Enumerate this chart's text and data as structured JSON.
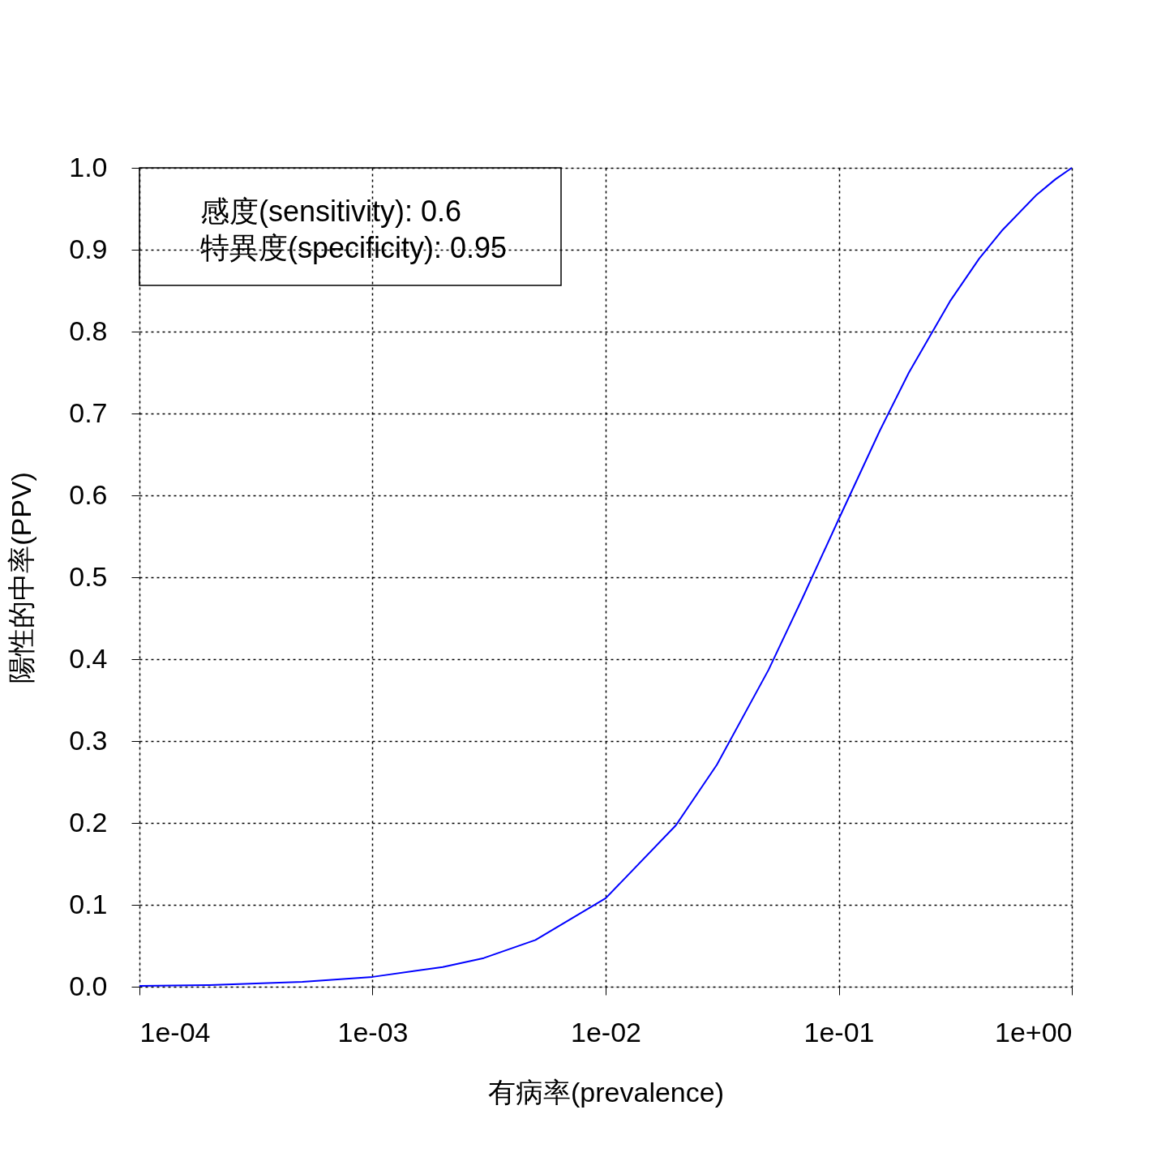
{
  "chart_data": {
    "type": "line",
    "xlabel": "有病率(prevalence)",
    "ylabel": "陽性的中率(PPV)",
    "annotations": [
      "感度(sensitivity): 0.6",
      "特異度(specificity): 0.95"
    ],
    "x": [
      0.0001,
      0.0002,
      0.0005,
      0.001,
      0.002,
      0.003,
      0.005,
      0.01,
      0.02,
      0.03,
      0.05,
      0.07,
      0.1,
      0.15,
      0.2,
      0.3,
      0.4,
      0.5,
      0.7,
      0.85,
      1
    ],
    "series": [
      {
        "color": "#0000ff",
        "values": [
          0.001,
          0.002,
          0.006,
          0.012,
          0.024,
          0.035,
          0.057,
          0.108,
          0.197,
          0.271,
          0.387,
          0.475,
          0.571,
          0.679,
          0.75,
          0.837,
          0.889,
          0.923,
          0.966,
          0.986,
          1.0
        ]
      }
    ],
    "log": "x",
    "xlim": [
      0.0001,
      1
    ],
    "ylim": [
      0,
      1
    ],
    "xticks": [
      {
        "value": 0.0001,
        "label": "1e-04"
      },
      {
        "value": 0.001,
        "label": "1e-03"
      },
      {
        "value": 0.01,
        "label": "1e-02"
      },
      {
        "value": 0.1,
        "label": "1e-01"
      },
      {
        "value": 1,
        "label": "1e+00"
      }
    ],
    "yticks": [
      {
        "value": 0,
        "label": "0.0"
      },
      {
        "value": 0.1,
        "label": "0.1"
      },
      {
        "value": 0.2,
        "label": "0.2"
      },
      {
        "value": 0.3,
        "label": "0.3"
      },
      {
        "value": 0.4,
        "label": "0.4"
      },
      {
        "value": 0.5,
        "label": "0.5"
      },
      {
        "value": 0.6,
        "label": "0.6"
      },
      {
        "value": 0.7,
        "label": "0.7"
      },
      {
        "value": 0.8,
        "label": "0.8"
      },
      {
        "value": 0.9,
        "label": "0.9"
      },
      {
        "value": 1,
        "label": "1.0"
      }
    ],
    "grid": true,
    "marker": "none"
  }
}
